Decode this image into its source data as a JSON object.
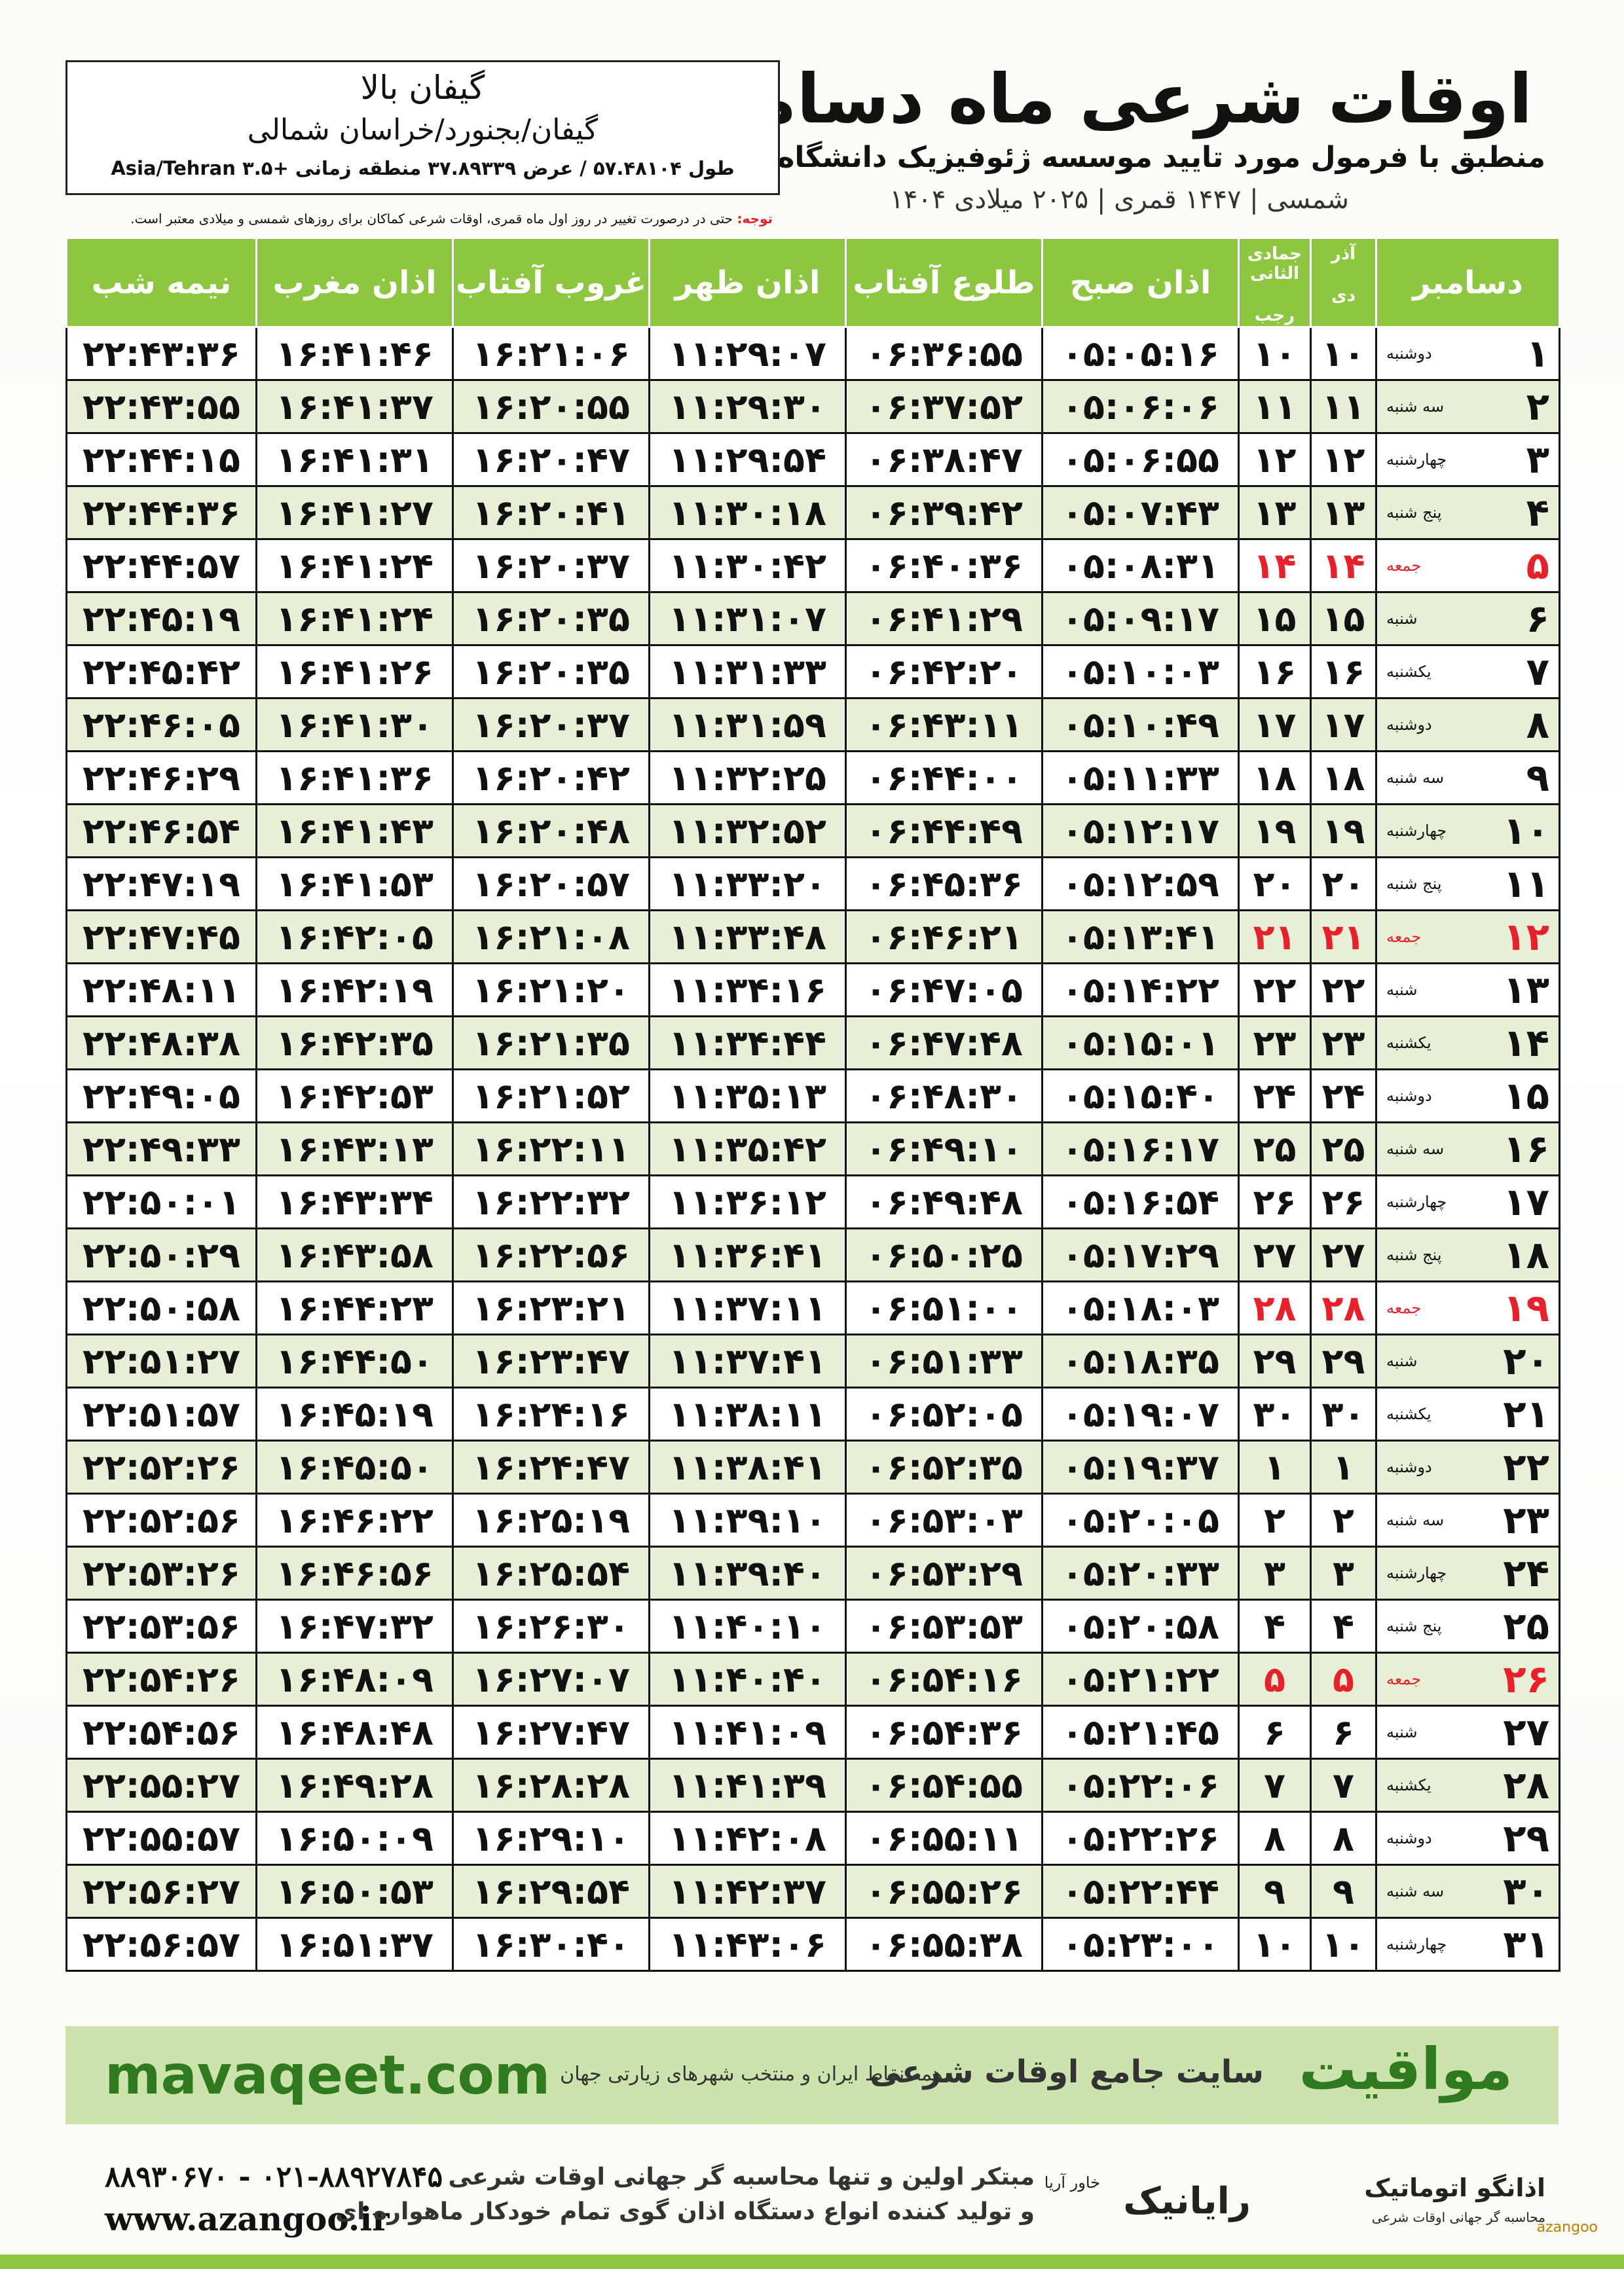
{
  "header": {
    "title": "اوقات شرعی ماه دسامبر",
    "subtitle": "منطبق با فرمول مورد تایید موسسه ژئوفیزیک دانشگاه تهران",
    "dates": "۱۴۰۴ شمسی | ۱۴۴۷ قمری | ۲۰۲۵ میلادی"
  },
  "location": {
    "name": "گیفان بالا",
    "region": "گیفان/بجنورد/خراسان شمالی",
    "coords": "طول ۵۷.۴۸۱۰۴ / عرض ۳۷.۸۹۳۳۹ منطقه زمانی +۳.۵ Asia/Tehran"
  },
  "note": {
    "label": "توجه:",
    "text": "حتی در درصورت تغییر در روز اول ماه قمری، اوقات شرعی کماکان برای روزهای شمسی و میلادی معتبر است."
  },
  "table": {
    "columns": [
      {
        "text": "دسامبر"
      },
      {
        "top": "آذر",
        "bottom": "دی"
      },
      {
        "top": "جمادی الثانی",
        "bottom": "رجب"
      },
      {
        "text": "اذان صبح"
      },
      {
        "text": "طلوع آفتاب"
      },
      {
        "text": "اذان ظهر"
      },
      {
        "text": "غروب آفتاب"
      },
      {
        "text": "اذان مغرب"
      },
      {
        "text": "نیمه شب"
      }
    ],
    "holiday_color": "#e8202a",
    "rows": [
      {
        "cells": [
          "۱",
          "دوشنبه",
          "۱۰",
          "۱۰",
          "۰۵:۰۵:۱۶",
          "۰۶:۳۶:۵۵",
          "۱۱:۲۹:۰۷",
          "۱۶:۲۱:۰۶",
          "۱۶:۴۱:۴۶",
          "۲۲:۴۳:۳۶"
        ]
      },
      {
        "cells": [
          "۲",
          "سه شنبه",
          "۱۱",
          "۱۱",
          "۰۵:۰۶:۰۶",
          "۰۶:۳۷:۵۲",
          "۱۱:۲۹:۳۰",
          "۱۶:۲۰:۵۵",
          "۱۶:۴۱:۳۷",
          "۲۲:۴۳:۵۵"
        ]
      },
      {
        "cells": [
          "۳",
          "چهارشنبه",
          "۱۲",
          "۱۲",
          "۰۵:۰۶:۵۵",
          "۰۶:۳۸:۴۷",
          "۱۱:۲۹:۵۴",
          "۱۶:۲۰:۴۷",
          "۱۶:۴۱:۳۱",
          "۲۲:۴۴:۱۵"
        ]
      },
      {
        "cells": [
          "۴",
          "پنج شنبه",
          "۱۳",
          "۱۳",
          "۰۵:۰۷:۴۳",
          "۰۶:۳۹:۴۲",
          "۱۱:۳۰:۱۸",
          "۱۶:۲۰:۴۱",
          "۱۶:۴۱:۲۷",
          "۲۲:۴۴:۳۶"
        ]
      },
      {
        "cells": [
          "۵",
          "جمعه",
          "۱۴",
          "۱۴",
          "۰۵:۰۸:۳۱",
          "۰۶:۴۰:۳۶",
          "۱۱:۳۰:۴۲",
          "۱۶:۲۰:۳۷",
          "۱۶:۴۱:۲۴",
          "۲۲:۴۴:۵۷"
        ],
        "holiday": true
      },
      {
        "cells": [
          "۶",
          "شنبه",
          "۱۵",
          "۱۵",
          "۰۵:۰۹:۱۷",
          "۰۶:۴۱:۲۹",
          "۱۱:۳۱:۰۷",
          "۱۶:۲۰:۳۵",
          "۱۶:۴۱:۲۴",
          "۲۲:۴۵:۱۹"
        ]
      },
      {
        "cells": [
          "۷",
          "یکشنبه",
          "۱۶",
          "۱۶",
          "۰۵:۱۰:۰۳",
          "۰۶:۴۲:۲۰",
          "۱۱:۳۱:۳۳",
          "۱۶:۲۰:۳۵",
          "۱۶:۴۱:۲۶",
          "۲۲:۴۵:۴۲"
        ]
      },
      {
        "cells": [
          "۸",
          "دوشنبه",
          "۱۷",
          "۱۷",
          "۰۵:۱۰:۴۹",
          "۰۶:۴۳:۱۱",
          "۱۱:۳۱:۵۹",
          "۱۶:۲۰:۳۷",
          "۱۶:۴۱:۳۰",
          "۲۲:۴۶:۰۵"
        ]
      },
      {
        "cells": [
          "۹",
          "سه شنبه",
          "۱۸",
          "۱۸",
          "۰۵:۱۱:۳۳",
          "۰۶:۴۴:۰۰",
          "۱۱:۳۲:۲۵",
          "۱۶:۲۰:۴۲",
          "۱۶:۴۱:۳۶",
          "۲۲:۴۶:۲۹"
        ]
      },
      {
        "cells": [
          "۱۰",
          "چهارشنبه",
          "۱۹",
          "۱۹",
          "۰۵:۱۲:۱۷",
          "۰۶:۴۴:۴۹",
          "۱۱:۳۲:۵۲",
          "۱۶:۲۰:۴۸",
          "۱۶:۴۱:۴۳",
          "۲۲:۴۶:۵۴"
        ]
      },
      {
        "cells": [
          "۱۱",
          "پنج شنبه",
          "۲۰",
          "۲۰",
          "۰۵:۱۲:۵۹",
          "۰۶:۴۵:۳۶",
          "۱۱:۳۳:۲۰",
          "۱۶:۲۰:۵۷",
          "۱۶:۴۱:۵۳",
          "۲۲:۴۷:۱۹"
        ]
      },
      {
        "cells": [
          "۱۲",
          "جمعه",
          "۲۱",
          "۲۱",
          "۰۵:۱۳:۴۱",
          "۰۶:۴۶:۲۱",
          "۱۱:۳۳:۴۸",
          "۱۶:۲۱:۰۸",
          "۱۶:۴۲:۰۵",
          "۲۲:۴۷:۴۵"
        ],
        "holiday": true
      },
      {
        "cells": [
          "۱۳",
          "شنبه",
          "۲۲",
          "۲۲",
          "۰۵:۱۴:۲۲",
          "۰۶:۴۷:۰۵",
          "۱۱:۳۴:۱۶",
          "۱۶:۲۱:۲۰",
          "۱۶:۴۲:۱۹",
          "۲۲:۴۸:۱۱"
        ]
      },
      {
        "cells": [
          "۱۴",
          "یکشنبه",
          "۲۳",
          "۲۳",
          "۰۵:۱۵:۰۱",
          "۰۶:۴۷:۴۸",
          "۱۱:۳۴:۴۴",
          "۱۶:۲۱:۳۵",
          "۱۶:۴۲:۳۵",
          "۲۲:۴۸:۳۸"
        ]
      },
      {
        "cells": [
          "۱۵",
          "دوشنبه",
          "۲۴",
          "۲۴",
          "۰۵:۱۵:۴۰",
          "۰۶:۴۸:۳۰",
          "۱۱:۳۵:۱۳",
          "۱۶:۲۱:۵۲",
          "۱۶:۴۲:۵۳",
          "۲۲:۴۹:۰۵"
        ]
      },
      {
        "cells": [
          "۱۶",
          "سه شنبه",
          "۲۵",
          "۲۵",
          "۰۵:۱۶:۱۷",
          "۰۶:۴۹:۱۰",
          "۱۱:۳۵:۴۲",
          "۱۶:۲۲:۱۱",
          "۱۶:۴۳:۱۳",
          "۲۲:۴۹:۳۳"
        ]
      },
      {
        "cells": [
          "۱۷",
          "چهارشنبه",
          "۲۶",
          "۲۶",
          "۰۵:۱۶:۵۴",
          "۰۶:۴۹:۴۸",
          "۱۱:۳۶:۱۲",
          "۱۶:۲۲:۳۲",
          "۱۶:۴۳:۳۴",
          "۲۲:۵۰:۰۱"
        ]
      },
      {
        "cells": [
          "۱۸",
          "پنج شنبه",
          "۲۷",
          "۲۷",
          "۰۵:۱۷:۲۹",
          "۰۶:۵۰:۲۵",
          "۱۱:۳۶:۴۱",
          "۱۶:۲۲:۵۶",
          "۱۶:۴۳:۵۸",
          "۲۲:۵۰:۲۹"
        ]
      },
      {
        "cells": [
          "۱۹",
          "جمعه",
          "۲۸",
          "۲۸",
          "۰۵:۱۸:۰۳",
          "۰۶:۵۱:۰۰",
          "۱۱:۳۷:۱۱",
          "۱۶:۲۳:۲۱",
          "۱۶:۴۴:۲۳",
          "۲۲:۵۰:۵۸"
        ],
        "holiday": true
      },
      {
        "cells": [
          "۲۰",
          "شنبه",
          "۲۹",
          "۲۹",
          "۰۵:۱۸:۳۵",
          "۰۶:۵۱:۳۳",
          "۱۱:۳۷:۴۱",
          "۱۶:۲۳:۴۷",
          "۱۶:۴۴:۵۰",
          "۲۲:۵۱:۲۷"
        ]
      },
      {
        "cells": [
          "۲۱",
          "یکشنبه",
          "۳۰",
          "۳۰",
          "۰۵:۱۹:۰۷",
          "۰۶:۵۲:۰۵",
          "۱۱:۳۸:۱۱",
          "۱۶:۲۴:۱۶",
          "۱۶:۴۵:۱۹",
          "۲۲:۵۱:۵۷"
        ]
      },
      {
        "cells": [
          "۲۲",
          "دوشنبه",
          "۱",
          "۱",
          "۰۵:۱۹:۳۷",
          "۰۶:۵۲:۳۵",
          "۱۱:۳۸:۴۱",
          "۱۶:۲۴:۴۷",
          "۱۶:۴۵:۵۰",
          "۲۲:۵۲:۲۶"
        ]
      },
      {
        "cells": [
          "۲۳",
          "سه شنبه",
          "۲",
          "۲",
          "۰۵:۲۰:۰۵",
          "۰۶:۵۳:۰۳",
          "۱۱:۳۹:۱۰",
          "۱۶:۲۵:۱۹",
          "۱۶:۴۶:۲۲",
          "۲۲:۵۲:۵۶"
        ]
      },
      {
        "cells": [
          "۲۴",
          "چهارشنبه",
          "۳",
          "۳",
          "۰۵:۲۰:۳۳",
          "۰۶:۵۳:۲۹",
          "۱۱:۳۹:۴۰",
          "۱۶:۲۵:۵۴",
          "۱۶:۴۶:۵۶",
          "۲۲:۵۳:۲۶"
        ]
      },
      {
        "cells": [
          "۲۵",
          "پنج شنبه",
          "۴",
          "۴",
          "۰۵:۲۰:۵۸",
          "۰۶:۵۳:۵۳",
          "۱۱:۴۰:۱۰",
          "۱۶:۲۶:۳۰",
          "۱۶:۴۷:۳۲",
          "۲۲:۵۳:۵۶"
        ]
      },
      {
        "cells": [
          "۲۶",
          "جمعه",
          "۵",
          "۵",
          "۰۵:۲۱:۲۲",
          "۰۶:۵۴:۱۶",
          "۱۱:۴۰:۴۰",
          "۱۶:۲۷:۰۷",
          "۱۶:۴۸:۰۹",
          "۲۲:۵۴:۲۶"
        ],
        "holiday": true
      },
      {
        "cells": [
          "۲۷",
          "شنبه",
          "۶",
          "۶",
          "۰۵:۲۱:۴۵",
          "۰۶:۵۴:۳۶",
          "۱۱:۴۱:۰۹",
          "۱۶:۲۷:۴۷",
          "۱۶:۴۸:۴۸",
          "۲۲:۵۴:۵۶"
        ]
      },
      {
        "cells": [
          "۲۸",
          "یکشنبه",
          "۷",
          "۷",
          "۰۵:۲۲:۰۶",
          "۰۶:۵۴:۵۵",
          "۱۱:۴۱:۳۹",
          "۱۶:۲۸:۲۸",
          "۱۶:۴۹:۲۸",
          "۲۲:۵۵:۲۷"
        ]
      },
      {
        "cells": [
          "۲۹",
          "دوشنبه",
          "۸",
          "۸",
          "۰۵:۲۲:۲۶",
          "۰۶:۵۵:۱۱",
          "۱۱:۴۲:۰۸",
          "۱۶:۲۹:۱۰",
          "۱۶:۵۰:۰۹",
          "۲۲:۵۵:۵۷"
        ]
      },
      {
        "cells": [
          "۳۰",
          "سه شنبه",
          "۹",
          "۹",
          "۰۵:۲۲:۴۴",
          "۰۶:۵۵:۲۶",
          "۱۱:۴۲:۳۷",
          "۱۶:۲۹:۵۴",
          "۱۶:۵۰:۵۳",
          "۲۲:۵۶:۲۷"
        ]
      },
      {
        "cells": [
          "۳۱",
          "چهارشنبه",
          "۱۰",
          "۱۰",
          "۰۵:۲۳:۰۰",
          "۰۶:۵۵:۳۸",
          "۱۱:۴۳:۰۶",
          "۱۶:۳۰:۴۰",
          "۱۶:۵۱:۳۷",
          "۲۲:۵۶:۵۷"
        ]
      }
    ]
  },
  "footer": {
    "brand": "مواقیت",
    "slogan": "سایت جامع اوقات شرعی",
    "coverage": "همه نقاط ایران و منتخب شهرهای زیارتی جهان",
    "site": "mavaqeet.com"
  },
  "contact": {
    "phones": "۰۲۱-۸۸۹۲۷۸۴۵ - ۸۸۹۳۰۶۷۰",
    "web": "www.azangoo.ir",
    "line1": "مبتکر اولین و تنها محاسبه گر جهانی اوقات شرعی",
    "line2": "و تولید کننده انواع دستگاه اذان گوی تمام خودکار ماهواره ای",
    "logo1": "رایانیک",
    "logo1_sub": "خاور آریا",
    "logo2": "اذانگو اتوماتیک",
    "logo2_sub": "محاسبه گر جهانی اوقات شرعی",
    "logo2_latin": "azangoo"
  }
}
